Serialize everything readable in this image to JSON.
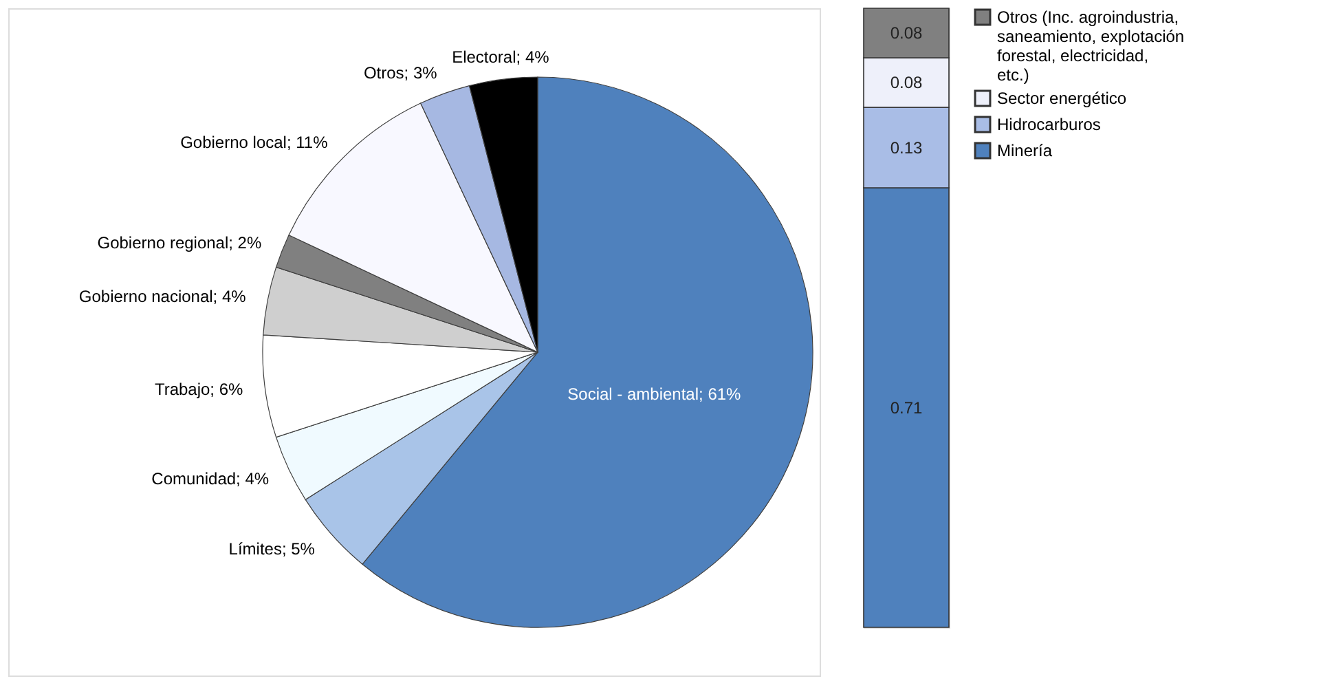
{
  "chart_data": [
    {
      "type": "pie",
      "categories": [
        "Social - ambiental",
        "Límites",
        "Comunidad",
        "Trabajo",
        "Gobierno nacional",
        "Gobierno regional",
        "Gobierno local",
        "Otros",
        "Electoral"
      ],
      "values": [
        61,
        5,
        4,
        6,
        4,
        2,
        11,
        3,
        4
      ],
      "colors": [
        "#4f81bd",
        "#a9c4e8",
        "#f0faff",
        "#ffffff",
        "#cfcfcf",
        "#808080",
        "#f8f8ff",
        "#a6b8e2",
        "#000000"
      ],
      "value_labels": [
        "61%",
        "5%",
        "4%",
        "6%",
        "4%",
        "2%",
        "11%",
        "3%",
        "4%"
      ]
    },
    {
      "type": "bar",
      "stacked": true,
      "categories": [
        null
      ],
      "data_labels": true,
      "legend": "right",
      "series": [
        {
          "name": "Minería",
          "color": "#4f81bd",
          "values": [
            0.71
          ]
        },
        {
          "name": "Hidrocarburos",
          "color": "#a9bde6",
          "values": [
            0.13
          ]
        },
        {
          "name": "Sector energético",
          "color": "#eef0fa",
          "values": [
            0.08
          ]
        },
        {
          "name": "Otros (Inc. agroindustria, saneamiento, explotación forestal, electricidad, etc.)",
          "color": "#808080",
          "values": [
            0.08
          ]
        }
      ]
    }
  ]
}
